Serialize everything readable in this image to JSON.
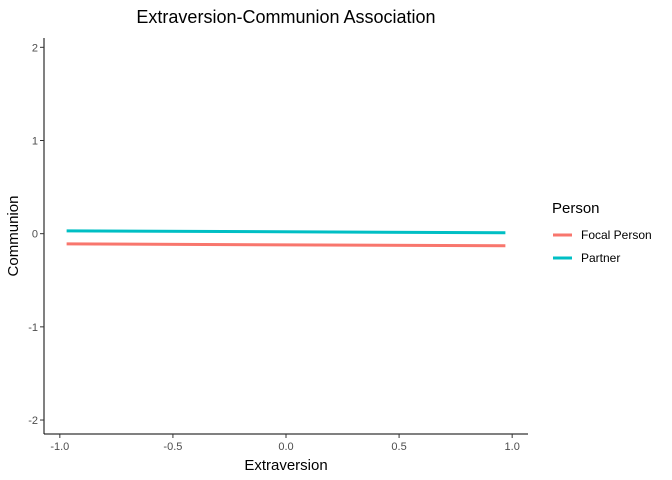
{
  "chart_data": {
    "type": "line",
    "title": "Extraversion-Communion Association",
    "xlabel": "Extraversion",
    "ylabel": "Communion",
    "xlim": [
      -1.07,
      1.07
    ],
    "ylim": [
      -2.15,
      2.1
    ],
    "x_ticks": [
      -1.0,
      -0.5,
      0.0,
      0.5,
      1.0
    ],
    "x_tick_labels": [
      "-1.0",
      "-0.5",
      "0.0",
      "0.5",
      "1.0"
    ],
    "y_ticks": [
      -2,
      -1,
      0,
      1,
      2
    ],
    "y_tick_labels": [
      "-2",
      "-1",
      "0",
      "1",
      "2"
    ],
    "grid": false,
    "legend": {
      "title": "Person",
      "placement": "right"
    },
    "series": [
      {
        "name": "Focal Person",
        "color": "#F8766D",
        "x": [
          -0.97,
          0.97
        ],
        "y": [
          -0.11,
          -0.13
        ]
      },
      {
        "name": "Partner",
        "color": "#00BFC4",
        "x": [
          -0.97,
          0.97
        ],
        "y": [
          0.03,
          0.01
        ]
      }
    ]
  }
}
